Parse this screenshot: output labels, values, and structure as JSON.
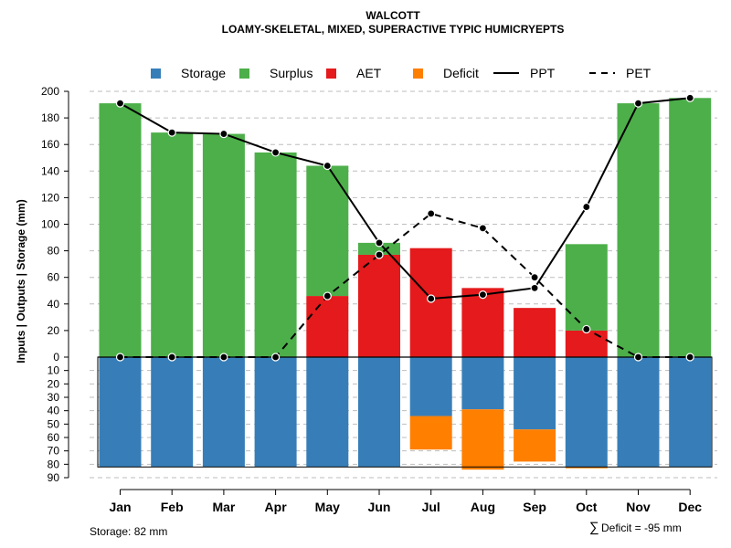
{
  "chart_data": {
    "type": "bar",
    "title": "WALCOTT",
    "subtitle": "LOAMY-SKELETAL, MIXED, SUPERACTIVE TYPIC HUMICRYEPTS",
    "ylabel": "Inputs | Outputs | Storage    (mm)",
    "categories": [
      "Jan",
      "Feb",
      "Mar",
      "Apr",
      "May",
      "Jun",
      "Jul",
      "Aug",
      "Sep",
      "Oct",
      "Nov",
      "Dec"
    ],
    "y_upper_ticks": [
      "200",
      "180",
      "160",
      "140",
      "120",
      "100",
      "80",
      "60",
      "40",
      "20",
      "0"
    ],
    "y_lower_ticks": [
      "10",
      "20",
      "30",
      "40",
      "50",
      "60",
      "70",
      "80",
      "90"
    ],
    "ylim_upper": [
      0,
      200
    ],
    "ylim_lower": [
      0,
      90
    ],
    "grid": true,
    "legend_position": "top",
    "legend": [
      {
        "label": "Storage",
        "type": "square",
        "color": "#377EB8"
      },
      {
        "label": "Surplus",
        "type": "square",
        "color": "#4DAF4A"
      },
      {
        "label": "AET",
        "type": "square",
        "color": "#E41A1C"
      },
      {
        "label": "Deficit",
        "type": "square",
        "color": "#FF7F00"
      },
      {
        "label": "PPT",
        "type": "solid-line",
        "color": "#000000"
      },
      {
        "label": "PET",
        "type": "dashed-line",
        "color": "#000000"
      }
    ],
    "series": [
      {
        "name": "AET",
        "values": [
          0,
          0,
          0,
          0,
          46,
          77,
          82,
          52,
          37,
          20,
          0,
          0
        ]
      },
      {
        "name": "Surplus",
        "values": [
          191,
          169,
          168,
          154,
          98,
          9,
          0,
          0,
          0,
          65,
          191,
          195
        ]
      },
      {
        "name": "Storage",
        "values": [
          82,
          82,
          82,
          82,
          82,
          82,
          44,
          39,
          54,
          82,
          82,
          82
        ]
      },
      {
        "name": "Deficit",
        "values": [
          0,
          0,
          0,
          0,
          0,
          0,
          25,
          45,
          24,
          1,
          0,
          0
        ]
      },
      {
        "name": "PPT",
        "values": [
          191,
          169,
          168,
          154,
          144,
          86,
          44,
          47,
          52,
          113,
          191,
          195
        ]
      },
      {
        "name": "PET",
        "values": [
          0,
          0,
          0,
          0,
          46,
          77,
          108,
          97,
          60,
          21,
          0,
          0
        ]
      }
    ],
    "colors": {
      "storage": "#377EB8",
      "surplus": "#4DAF4A",
      "aet": "#E41A1C",
      "deficit": "#FF7F00",
      "line": "#000000",
      "grid": "#BEBEBE"
    },
    "footer": {
      "storage_text": "Storage: 82 mm",
      "deficit_symbol": "∑",
      "deficit_text": "Deficit = -95 mm"
    }
  }
}
